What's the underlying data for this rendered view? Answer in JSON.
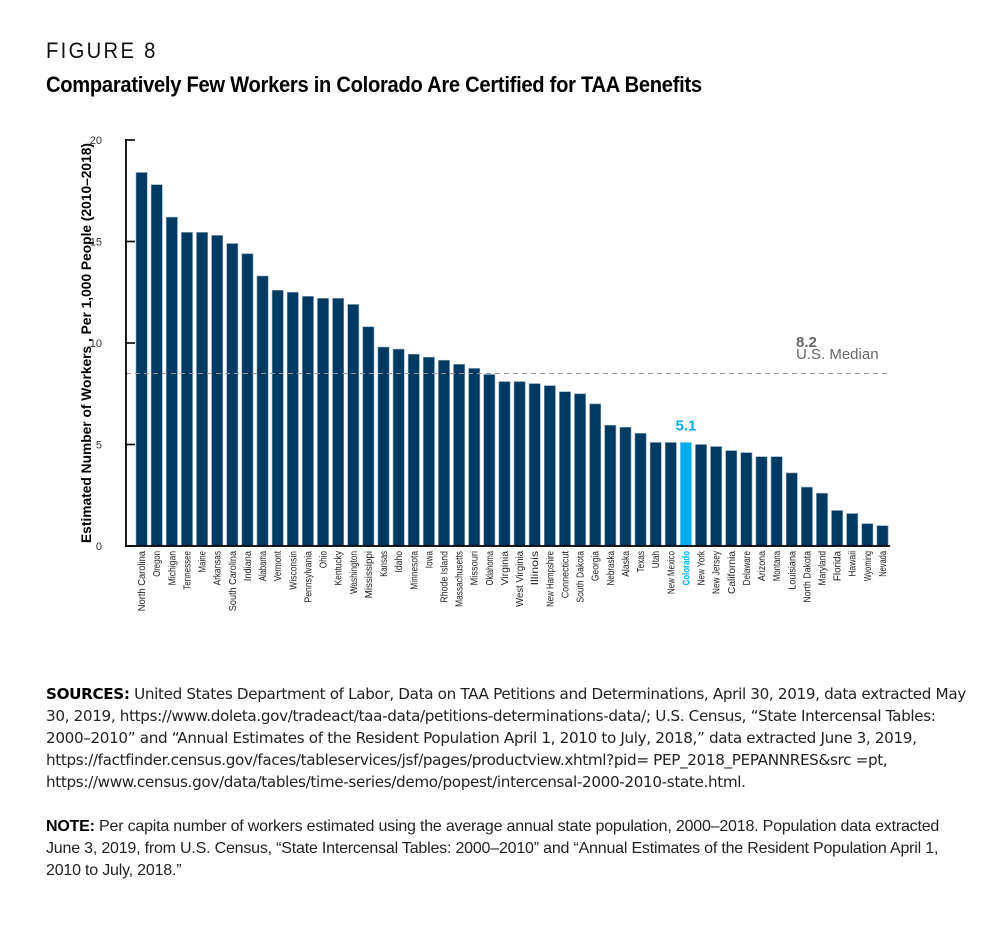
{
  "figure": {
    "label": "FIGURE 8",
    "title": "Comparatively Few Workers in Colorado Are Certified for TAA Benefits"
  },
  "colors": {
    "bar": "#003a63",
    "highlight": "#00aeef",
    "median_line": "#999999",
    "median_text": "#666666",
    "axis": "#000000"
  },
  "chart_data": {
    "type": "bar",
    "title": "Comparatively Few Workers in Colorado Are Certified for TAA Benefits",
    "xlabel": "",
    "ylabel": "Estimated Number of Workers , Per 1,000 People  (2010–2018)",
    "ylim": [
      0,
      20
    ],
    "yticks": [
      0,
      5,
      10,
      15,
      20
    ],
    "grid": false,
    "legend": "none",
    "categories": [
      "North Carolina",
      "Oregon",
      "Michigan",
      "Tennessee",
      "Maine",
      "Arkansas",
      "South Carolina",
      "Indiana",
      "Alabama",
      "Vermont",
      "Wisconsin",
      "Pennsylvania",
      "Ohio",
      "Kentucky",
      "Washington",
      "Mississippi",
      "Kansas",
      "Idaho",
      "Minnesota",
      "Iowa",
      "Rhode Island",
      "Massachusetts",
      "Missouri",
      "Oklahoma",
      "Virginia",
      "West Virginia",
      "Illinois",
      "New Hampshire",
      "Connecticut",
      "South Dakota",
      "Georgia",
      "Nebraska",
      "Alaska",
      "Texas",
      "Utah",
      "New Mexico",
      "Colorado",
      "New York",
      "New Jersey",
      "California",
      "Delaware",
      "Arizona",
      "Montana",
      "Louisiana",
      "North Dakota",
      "Maryland",
      "Florida",
      "Hawaii",
      "Wyoming",
      "Nevada"
    ],
    "values": [
      18.4,
      17.8,
      16.2,
      15.45,
      15.45,
      15.3,
      14.9,
      14.4,
      13.3,
      12.6,
      12.5,
      12.3,
      12.2,
      12.2,
      11.9,
      10.8,
      9.8,
      9.7,
      9.45,
      9.3,
      9.15,
      8.95,
      8.75,
      8.45,
      8.1,
      8.1,
      8.0,
      7.9,
      7.6,
      7.5,
      7.0,
      5.95,
      5.85,
      5.55,
      5.1,
      5.1,
      5.1,
      5.0,
      4.9,
      4.7,
      4.6,
      4.4,
      4.4,
      3.6,
      2.9,
      2.6,
      1.75,
      1.6,
      1.1,
      1.0
    ],
    "highlight": {
      "category": "Colorado",
      "value": 5.1,
      "label": "5.1"
    },
    "reference_line": {
      "value": 8.2,
      "value_label": "8.2",
      "label": "U.S. Median",
      "style": "dashed"
    }
  },
  "sources": {
    "heading": "SOURCES:",
    "text": " United States Department of Labor, Data on TAA Petitions and Determinations, April 30, 2019, data  extracted May 30, 2019, https://www.doleta.gov/tradeact/taa-data/petitions-determinations-data/; U.S. Census,  “State Intercensal Tables: 2000–2010” and “Annual Estimates of the Resident Population April 1, 2010 to July, 2018,”  data extracted June 3, 2019, https://factfinder.census.gov/faces/tableservices/jsf/pages/productview.xhtml?pid= PEP_2018_PEPANNRES&src =pt, https://www.census.gov/data/tables/time-series/demo/popest/intercensal-2000-2010-state.html."
  },
  "note": {
    "heading": "NOTE:",
    "text": " Per capita number of workers estimated using the average annual state population, 2000–2018. Population data extracted June 3, 2019, from U.S. Census, “State Intercensal Tables: 2000–2010” and “Annual Estimates of the Resident Population April 1, 2010 to July, 2018.”"
  }
}
